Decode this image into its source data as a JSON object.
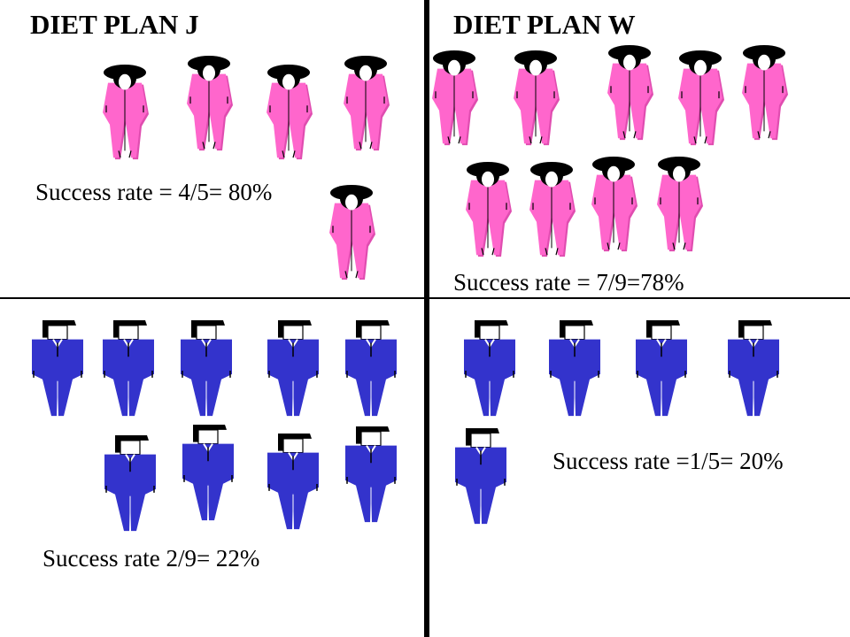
{
  "panels": {
    "plan_j": {
      "title": "DIET PLAN J"
    },
    "plan_w": {
      "title": "DIET PLAN W"
    }
  },
  "rates": {
    "j_women": "Success rate = 4/5= 80%",
    "w_women": "Success rate = 7/9=78%",
    "j_men": "Success rate 2/9= 22%",
    "w_men": "Success rate =1/5= 20%"
  },
  "colors": {
    "woman": "#ff66cc",
    "woman_shadow": "#e04db0",
    "man": "#3333cc",
    "hair": "#000000",
    "divider": "#000000"
  },
  "groups": {
    "plan_j_women": {
      "count": 5
    },
    "plan_w_women": {
      "count": 9
    },
    "plan_j_men": {
      "count": 9
    },
    "plan_w_men": {
      "count": 5
    }
  }
}
